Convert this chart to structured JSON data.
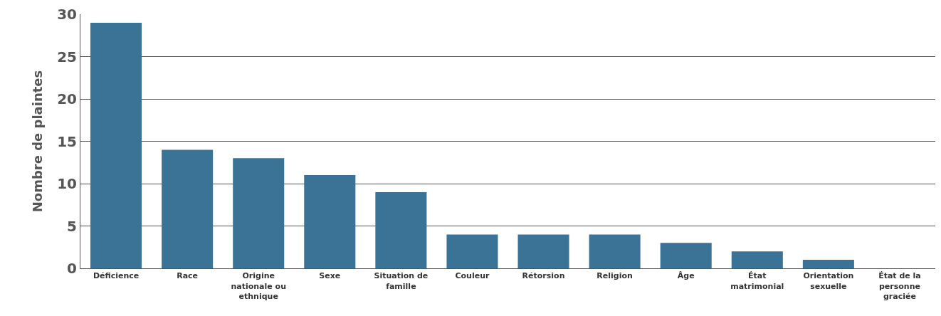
{
  "chart_data": {
    "type": "bar",
    "ylabel": "Nombre de plaintes",
    "categories": [
      "Déficience",
      "Race",
      "Origine nationale ou ethnique",
      "Sexe",
      "Situation de famille",
      "Couleur",
      "Rétorsion",
      "Religion",
      "Âge",
      "État matrimonial",
      "Orientation sexuelle",
      "État de la personne graciée"
    ],
    "values": [
      29,
      14,
      13,
      11,
      9,
      4,
      4,
      4,
      3,
      2,
      1,
      0
    ],
    "color": "#3b7396",
    "ylim": [
      0,
      30
    ],
    "yticks": [
      0,
      5,
      10,
      15,
      20,
      25,
      30
    ],
    "grid": "y"
  }
}
